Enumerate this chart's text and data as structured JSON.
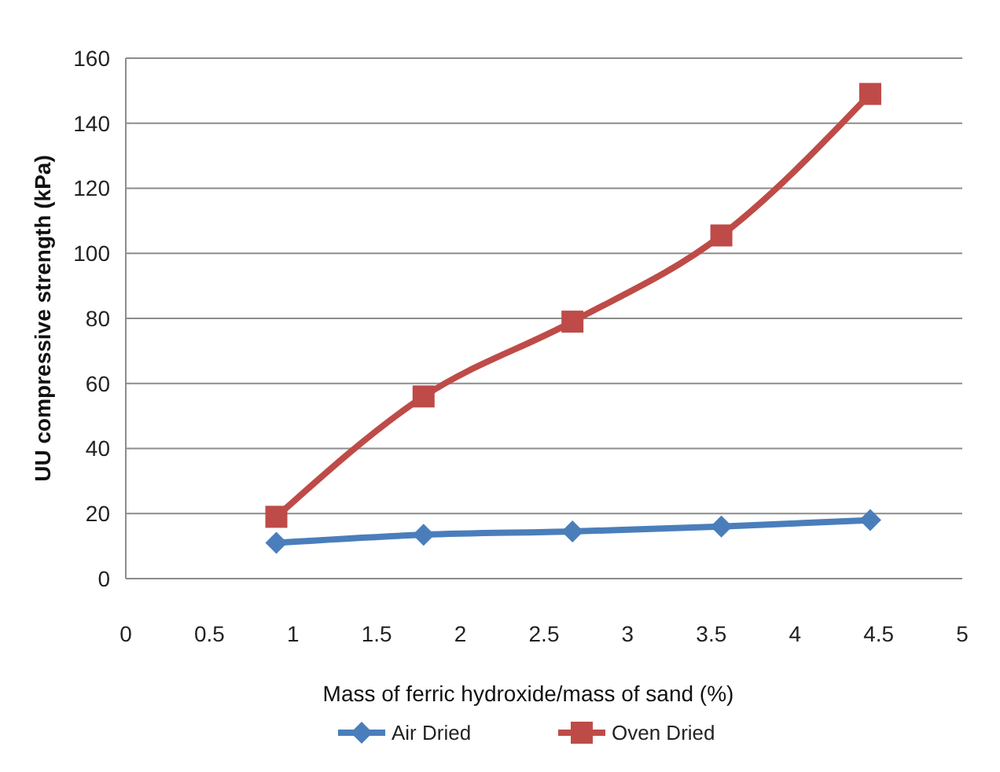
{
  "chart_data": {
    "type": "line",
    "xlabel": "Mass of ferric hydroxide/mass of sand (%)",
    "ylabel": "UU compressive strength  (kPa)",
    "xlim": [
      0,
      5
    ],
    "xticks": [
      0,
      0.5,
      1,
      1.5,
      2,
      2.5,
      3,
      3.5,
      4,
      4.5,
      5
    ],
    "ylim": [
      0,
      160
    ],
    "yticks": [
      0,
      20,
      40,
      60,
      80,
      100,
      120,
      140,
      160
    ],
    "grid": "y",
    "legend": "bottom",
    "x": [
      0.9,
      1.78,
      2.67,
      3.56,
      4.45
    ],
    "series": [
      {
        "name": "Air Dried",
        "color": "#4a7ebb",
        "marker": "diamond",
        "values": [
          11,
          13.5,
          14.5,
          16,
          18
        ]
      },
      {
        "name": "Oven Dried",
        "color": "#be4b48",
        "marker": "square",
        "values": [
          19,
          56,
          79,
          105.5,
          149
        ]
      }
    ]
  }
}
